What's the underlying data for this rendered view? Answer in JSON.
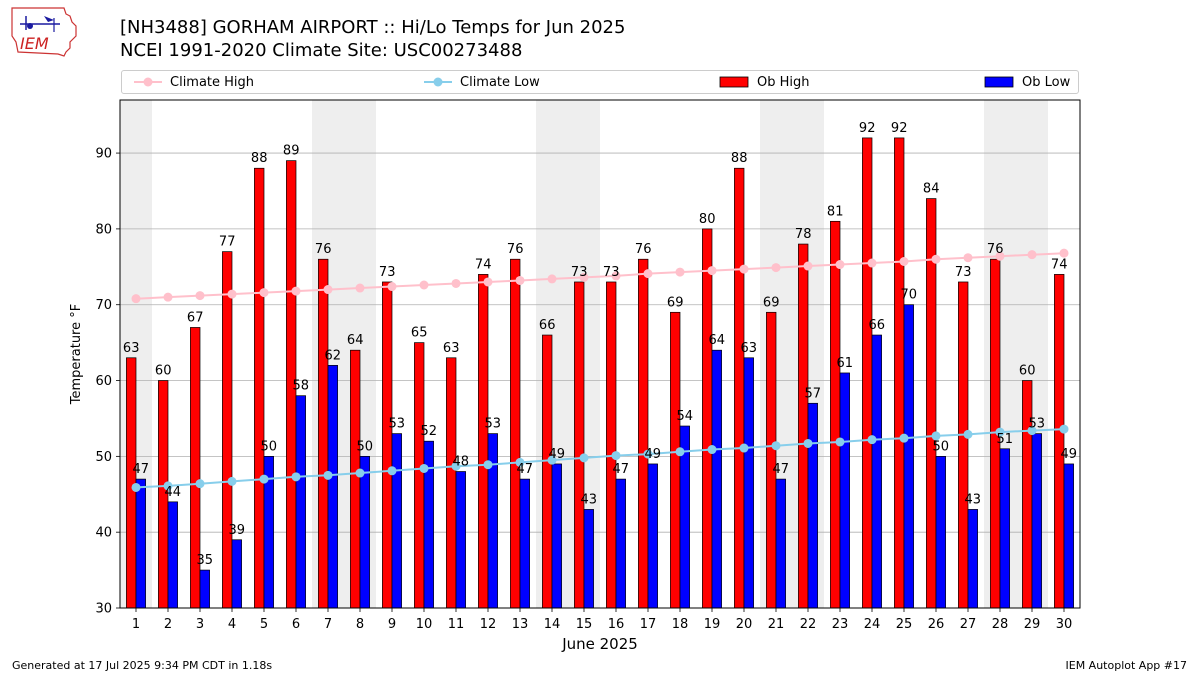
{
  "header": {
    "logo_text": "IEM",
    "title_line1": "[NH3488] GORHAM AIRPORT :: Hi/Lo Temps for Jun 2025",
    "title_line2": "NCEI 1991-2020 Climate Site: USC00273488"
  },
  "footer": {
    "generated": "Generated at 17 Jul 2025 9:34 PM CDT in 1.18s",
    "app": "IEM Autoplot App #17"
  },
  "colors": {
    "climate_high": "#ffc0cb",
    "climate_low": "#87ceeb",
    "ob_high": "#ff0000",
    "ob_low": "#0000ff",
    "weekend_shade": "#eeeeee",
    "grid": "#b0b0b0"
  },
  "chart_data": {
    "type": "bar",
    "xlabel": "June 2025",
    "ylabel": "Temperature °F",
    "ylim": [
      30,
      97
    ],
    "yticks": [
      30,
      40,
      50,
      60,
      70,
      80,
      90
    ],
    "grid": "y",
    "legend_position": "top",
    "categories": [
      "1",
      "2",
      "3",
      "4",
      "5",
      "6",
      "7",
      "8",
      "9",
      "10",
      "11",
      "12",
      "13",
      "14",
      "15",
      "16",
      "17",
      "18",
      "19",
      "20",
      "21",
      "22",
      "23",
      "24",
      "25",
      "26",
      "27",
      "28",
      "29",
      "30"
    ],
    "shaded_days": [
      1,
      7,
      8,
      14,
      15,
      21,
      22,
      28,
      29
    ],
    "series": [
      {
        "name": "Climate High",
        "kind": "line",
        "values": [
          70.8,
          71.0,
          71.2,
          71.4,
          71.6,
          71.8,
          72.0,
          72.2,
          72.4,
          72.6,
          72.8,
          73.0,
          73.2,
          73.4,
          73.6,
          73.8,
          74.1,
          74.3,
          74.5,
          74.7,
          74.9,
          75.1,
          75.3,
          75.5,
          75.7,
          76.0,
          76.2,
          76.4,
          76.6,
          76.8
        ]
      },
      {
        "name": "Climate Low",
        "kind": "line",
        "values": [
          45.9,
          46.1,
          46.4,
          46.7,
          47.0,
          47.3,
          47.5,
          47.8,
          48.1,
          48.4,
          48.7,
          48.9,
          49.2,
          49.5,
          49.8,
          50.1,
          50.3,
          50.6,
          50.9,
          51.1,
          51.4,
          51.7,
          51.9,
          52.2,
          52.4,
          52.7,
          52.9,
          53.2,
          53.4,
          53.6
        ]
      },
      {
        "name": "Ob High",
        "kind": "bar",
        "values": [
          63,
          60,
          67,
          77,
          88,
          89,
          76,
          64,
          73,
          65,
          63,
          74,
          76,
          66,
          73,
          73,
          76,
          69,
          80,
          88,
          69,
          78,
          81,
          92,
          92,
          84,
          73,
          76,
          60,
          74
        ]
      },
      {
        "name": "Ob Low",
        "kind": "bar",
        "values": [
          47,
          44,
          35,
          39,
          50,
          58,
          62,
          50,
          53,
          52,
          48,
          53,
          47,
          49,
          43,
          47,
          49,
          54,
          64,
          63,
          47,
          57,
          61,
          66,
          70,
          50,
          43,
          51,
          53,
          49
        ]
      }
    ]
  }
}
